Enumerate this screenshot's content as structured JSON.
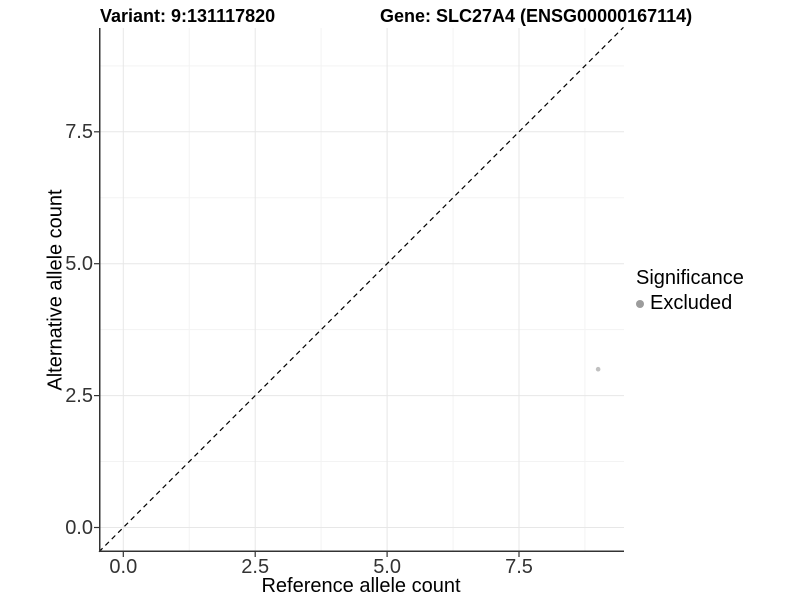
{
  "titles": {
    "variant": "Variant: 9:131117820",
    "gene": "Gene: SLC27A4 (ENSG00000167114)"
  },
  "chart_data": {
    "type": "scatter",
    "xlabel": "Reference allele count",
    "ylabel": "Alternative allele count",
    "xlim": [
      -0.46,
      9.48
    ],
    "ylim": [
      -0.46,
      9.48
    ],
    "xticks": [
      0,
      2.5,
      5,
      7.5
    ],
    "xtick_labels": [
      "0.0",
      "2.5",
      "5.0",
      "7.5"
    ],
    "yticks": [
      0,
      2.5,
      5,
      7.5
    ],
    "ytick_labels": [
      "0.0",
      "2.5",
      "5.0",
      "7.5"
    ],
    "minor_ticks": [
      1.25,
      3.75,
      6.25,
      8.75
    ],
    "grid": "major+minor",
    "reference_line": {
      "type": "identity",
      "label": "y = x",
      "style": "dashed",
      "color": "#000000"
    },
    "series": [
      {
        "name": "Excluded",
        "color": "#c0c0c0",
        "point_radius": 2.3,
        "points": [
          {
            "x": 9,
            "y": 3
          }
        ]
      }
    ],
    "legend": {
      "title": "Significance",
      "position": "right",
      "entries": [
        {
          "label": "Excluded",
          "color": "#9c9c9c"
        }
      ]
    }
  },
  "colors": {
    "background": "#ffffff",
    "axis": "#333333",
    "tick_text": "#333333",
    "title_text": "#000000",
    "grid_major": "#e7e7e7",
    "grid_minor": "#f3f3f3"
  }
}
